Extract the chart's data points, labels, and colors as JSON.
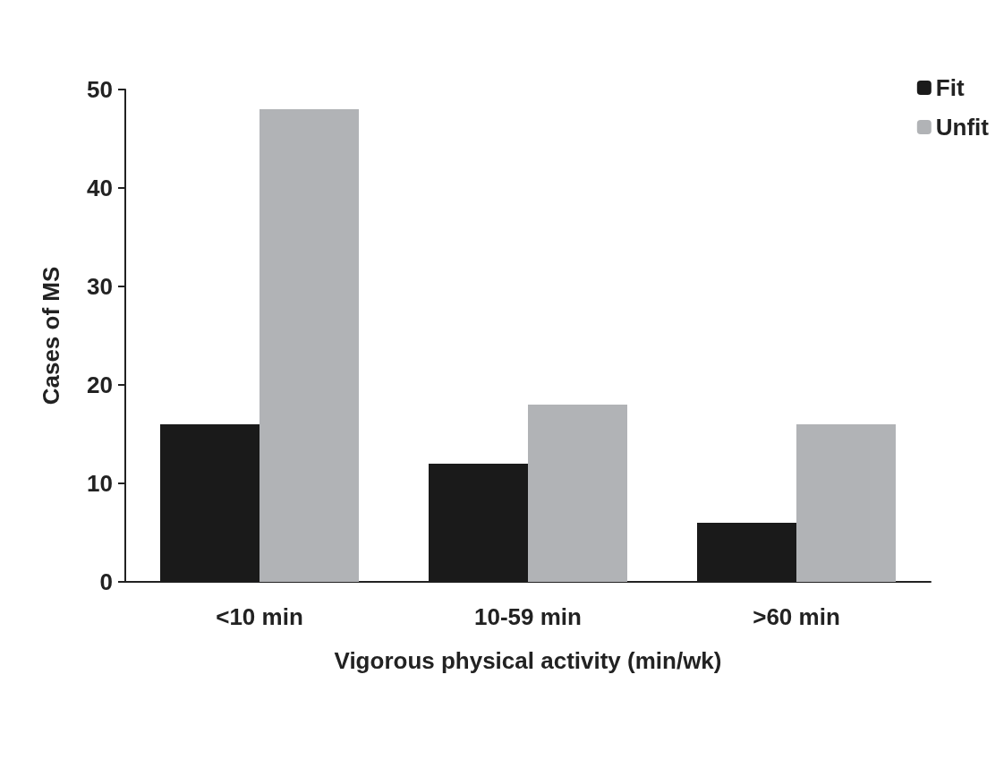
{
  "chart_data": {
    "type": "bar",
    "xlabel": "Vigorous physical activity (min/wk)",
    "ylabel": "Cases of MS",
    "categories": [
      "<10 min",
      "10-59 min",
      ">60 min"
    ],
    "series": [
      {
        "name": "Fit",
        "color": "#1a1a1a",
        "values": [
          16,
          12,
          6
        ]
      },
      {
        "name": "Unfit",
        "color": "#b1b3b6",
        "values": [
          48,
          18,
          16
        ]
      }
    ],
    "ylim": [
      0,
      50
    ],
    "yticks": [
      0,
      10,
      20,
      30,
      40,
      50
    ],
    "grid": false,
    "legend": "top right"
  }
}
